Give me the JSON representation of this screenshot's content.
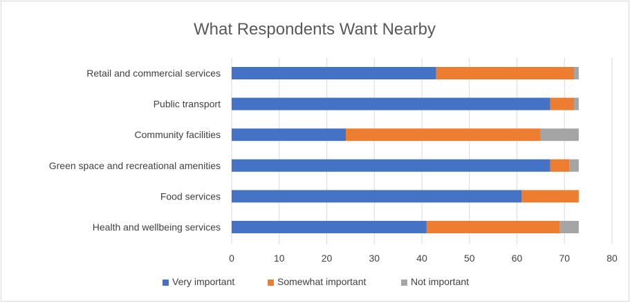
{
  "chart_data": {
    "type": "bar",
    "orientation": "horizontal",
    "stacked": true,
    "title": "What Respondents Want Nearby",
    "xlabel": "",
    "ylabel": "",
    "categories": [
      "Retail and commercial services",
      "Public transport",
      "Community facilities",
      "Green space and recreational amenities",
      "Food services",
      "Health and wellbeing services"
    ],
    "series": [
      {
        "name": "Very important",
        "color": "#4472c4",
        "values": [
          43,
          67,
          24,
          67,
          61,
          41
        ]
      },
      {
        "name": "Somewhat important",
        "color": "#ed7d31",
        "values": [
          29,
          5,
          41,
          4,
          12,
          28
        ]
      },
      {
        "name": "Not important",
        "color": "#a5a5a5",
        "values": [
          1,
          1,
          8,
          2,
          0,
          4
        ]
      }
    ],
    "xlim": [
      0,
      80
    ],
    "xticks": [
      "0",
      "10",
      "20",
      "30",
      "40",
      "50",
      "60",
      "70",
      "80"
    ],
    "grid": true,
    "legend_position": "bottom"
  }
}
